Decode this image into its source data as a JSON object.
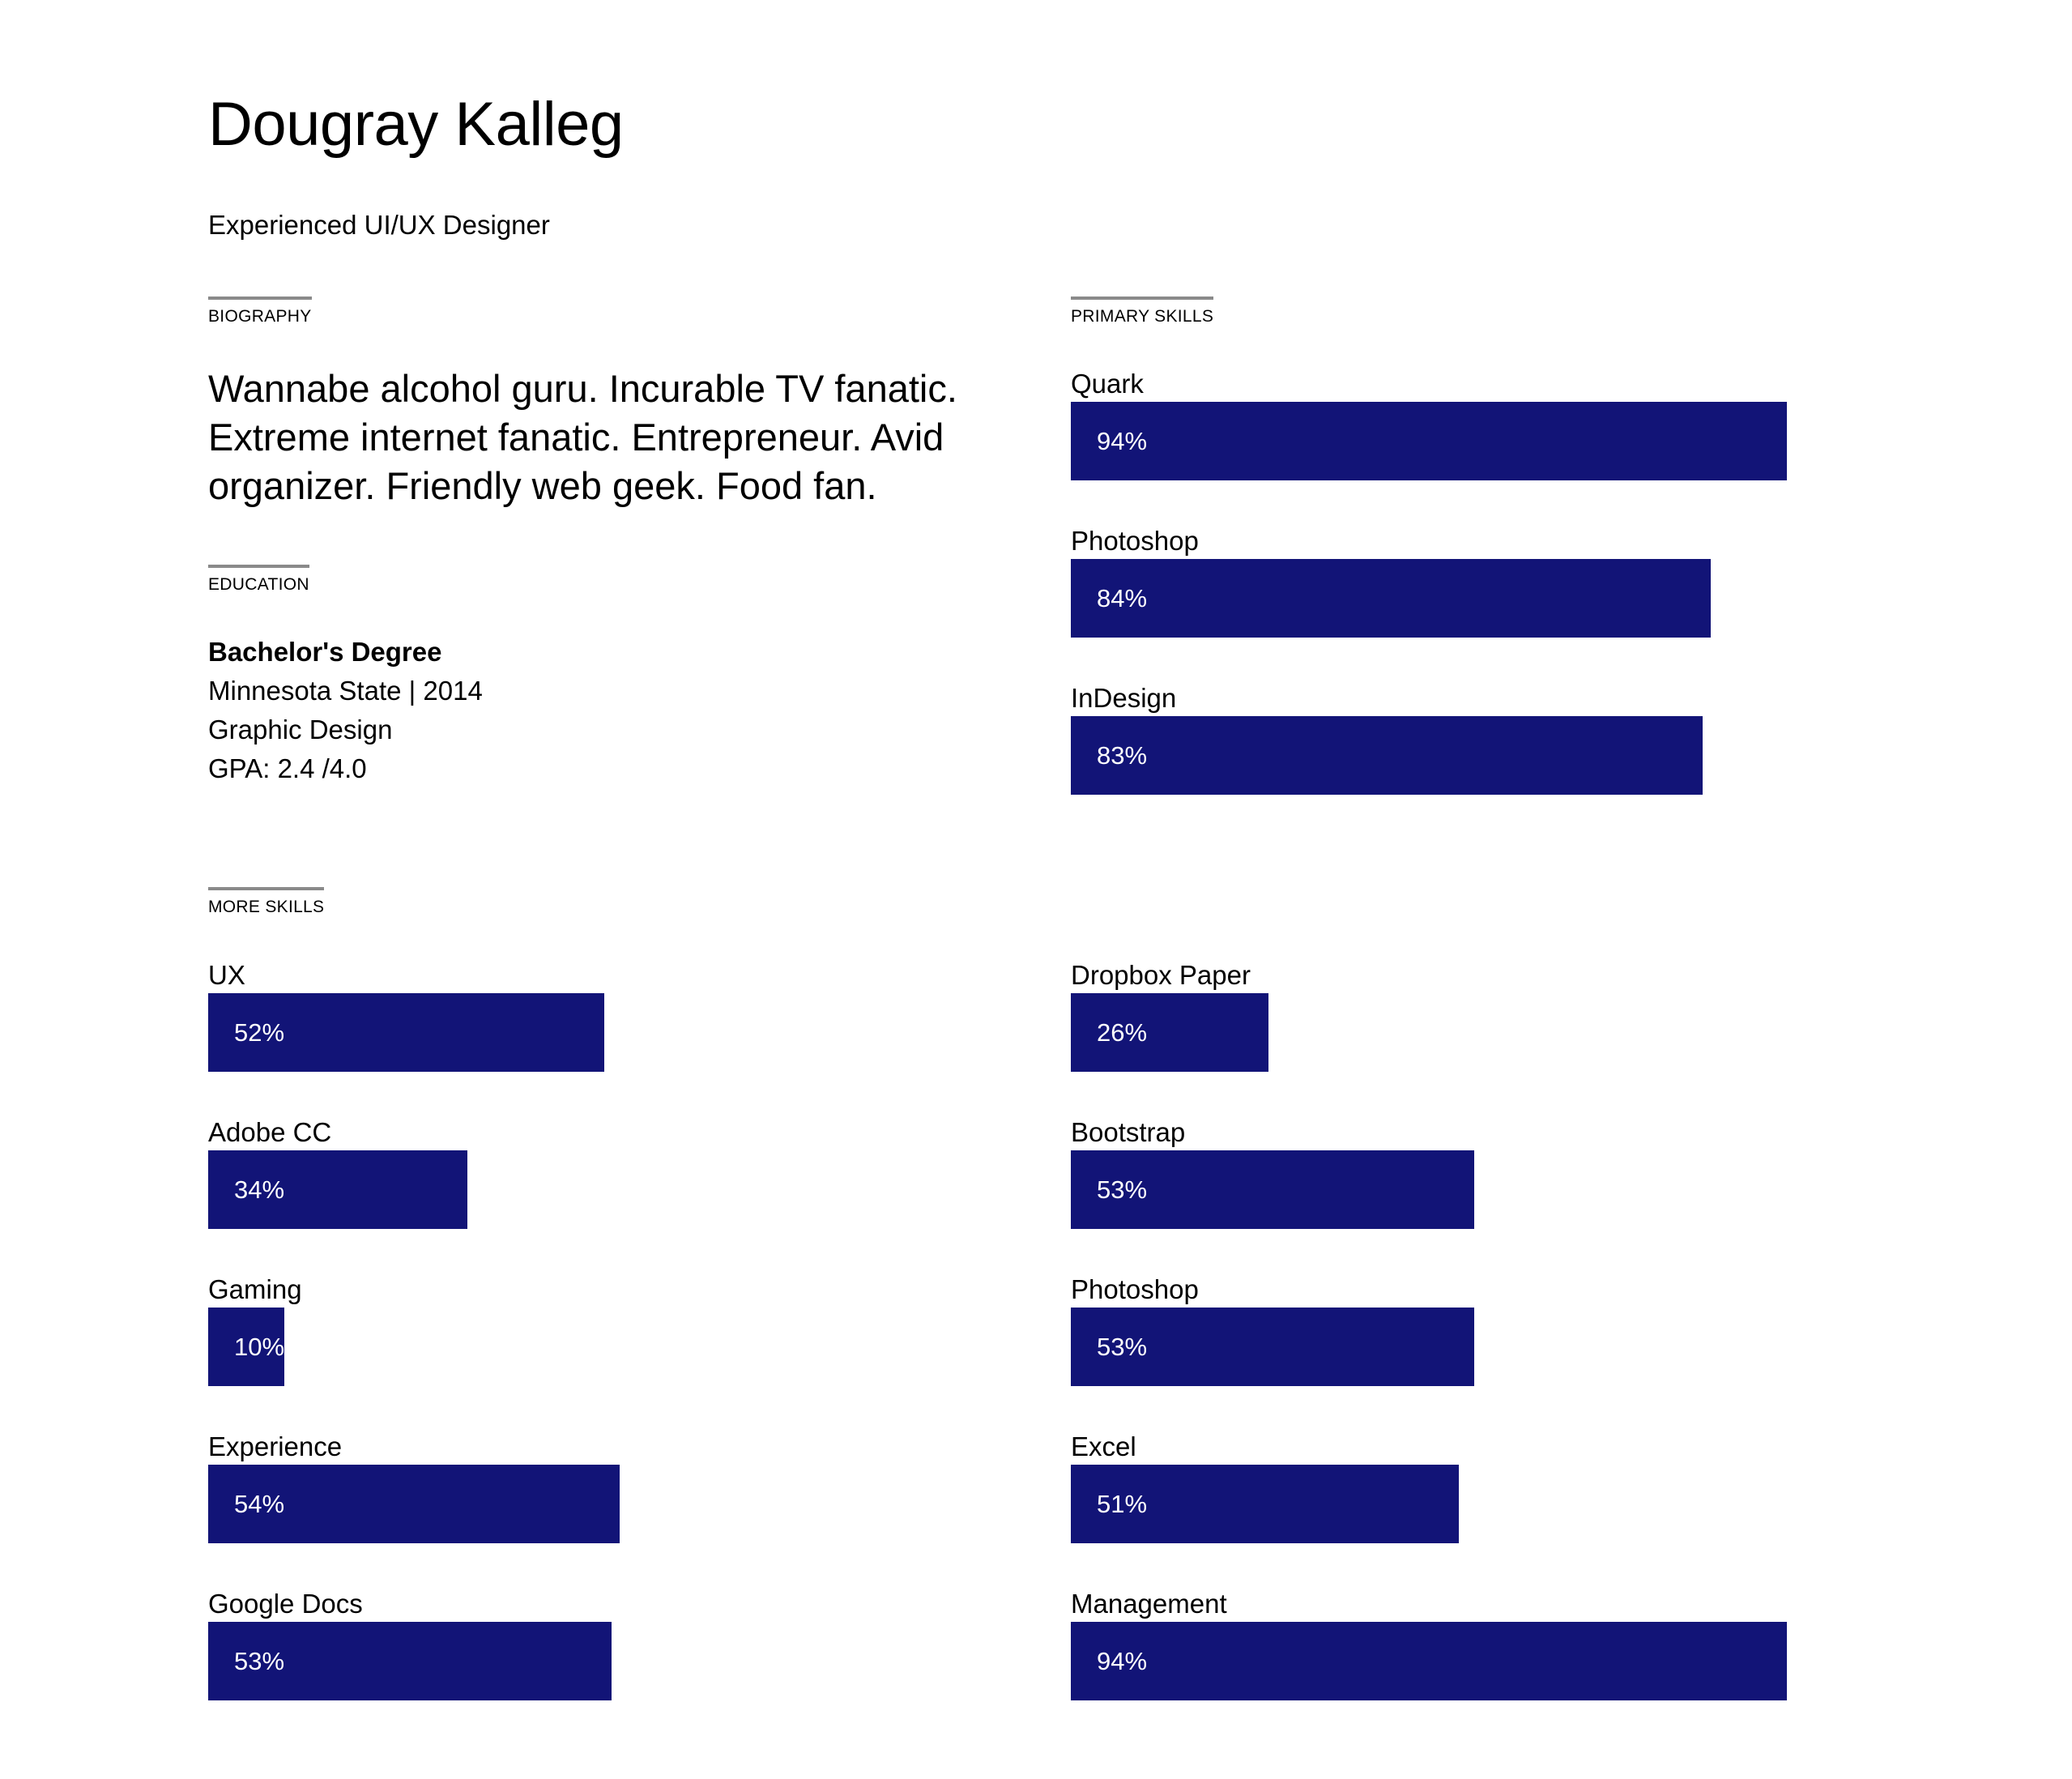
{
  "header": {
    "name": "Dougray Kalleg",
    "tagline": "Experienced UI/UX Designer"
  },
  "sections": {
    "biography": "BIOGRAPHY",
    "education": "EDUCATION",
    "more_skills": "MORE SKILLS",
    "primary_skills": "PRIMARY SKILLS"
  },
  "biography": "Wannabe alcohol guru. Incurable TV fanatic. Extreme internet fanatic. Entrepreneur. Avid organizer. Friendly web geek. Food fan.",
  "education": {
    "degree": "Bachelor's Degree",
    "school_year": "Minnesota State | 2014",
    "field": "Graphic Design",
    "gpa": "GPA: 2.4 /4.0"
  },
  "colors": {
    "bar": "#121477",
    "rule": "#8a8a8a"
  },
  "primary_skills": [
    {
      "name": "Quark",
      "value": 94,
      "label": "94%"
    },
    {
      "name": "Photoshop",
      "value": 84,
      "label": "84%"
    },
    {
      "name": "InDesign",
      "value": 83,
      "label": "83%"
    }
  ],
  "more_skills_left": [
    {
      "name": "UX",
      "value": 52,
      "label": "52%"
    },
    {
      "name": "Adobe CC",
      "value": 34,
      "label": "34%"
    },
    {
      "name": "Gaming",
      "value": 10,
      "label": "10%"
    },
    {
      "name": "Experience",
      "value": 54,
      "label": "54%"
    },
    {
      "name": "Google Docs",
      "value": 53,
      "label": "53%"
    }
  ],
  "more_skills_right": [
    {
      "name": "Dropbox Paper",
      "value": 26,
      "label": "26%"
    },
    {
      "name": "Bootstrap",
      "value": 53,
      "label": "53%"
    },
    {
      "name": "Photoshop",
      "value": 53,
      "label": "53%"
    },
    {
      "name": "Excel",
      "value": 51,
      "label": "51%"
    },
    {
      "name": "Management",
      "value": 94,
      "label": "94%"
    }
  ]
}
